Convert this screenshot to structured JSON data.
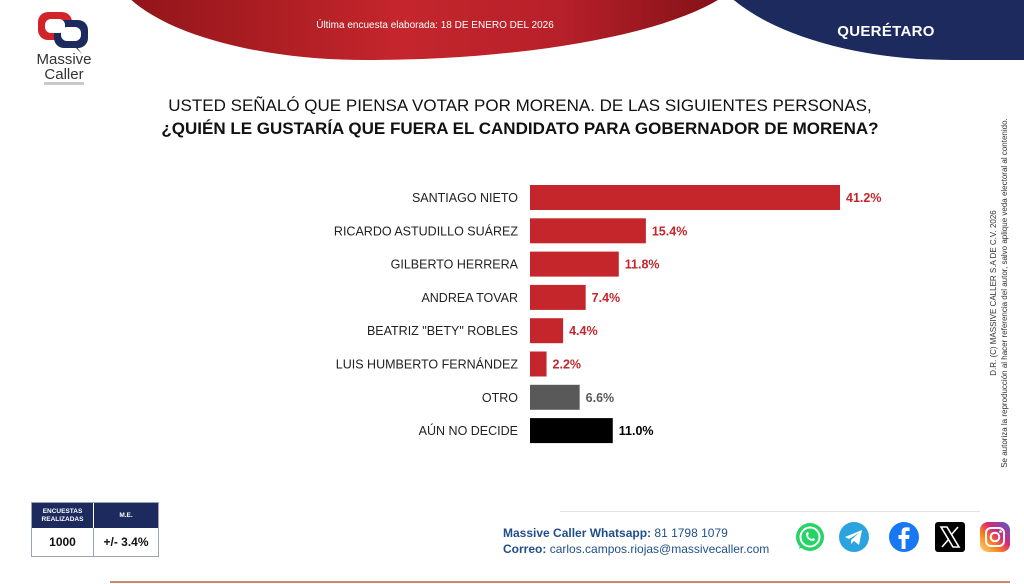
{
  "header": {
    "subtitle": "Última encuesta elaborada: 18 DE ENERO DEL 2026",
    "state": "QUERÉTARO",
    "red_color": "#c4262c",
    "navy_color": "#1c2a5e"
  },
  "logo": {
    "line1": "Massive",
    "line2": "Caller",
    "icon": "speech-bubbles-logo"
  },
  "question": {
    "line1": "USTED SEÑALÓ QUE PIENSA VOTAR POR MORENA. DE LAS SIGUIENTES PERSONAS,",
    "line2": "¿QUIÉN LE GUSTARÍA QUE FUERA EL CANDIDATO PARA GOBERNADOR DE MORENA?"
  },
  "chart_data": {
    "type": "bar",
    "orientation": "horizontal",
    "categories": [
      "SANTIAGO NIETO",
      "RICARDO ASTUDILLO SUÁREZ",
      "GILBERTO HERRERA",
      "ANDREA TOVAR",
      "BEATRIZ \"BETY\" ROBLES",
      "LUIS HUMBERTO FERNÁNDEZ",
      "OTRO",
      "AÚN NO DECIDE"
    ],
    "values": [
      41.2,
      15.4,
      11.8,
      7.4,
      4.4,
      2.2,
      6.6,
      11.0
    ],
    "value_labels": [
      "41.2%",
      "15.4%",
      "11.8%",
      "7.4%",
      "4.4%",
      "2.2%",
      "6.6%",
      "11.0%"
    ],
    "colors": [
      "#c4262c",
      "#c4262c",
      "#c4262c",
      "#c4262c",
      "#c4262c",
      "#c4262c",
      "#595959",
      "#000000"
    ],
    "label_colors": [
      "#c4262c",
      "#c4262c",
      "#c4262c",
      "#c4262c",
      "#c4262c",
      "#c4262c",
      "#595959",
      "#000000"
    ],
    "xlim": [
      0,
      41.2
    ],
    "grid": false,
    "legend": "none"
  },
  "copyright": {
    "line1": "D.R. (C) MASSIVE CALLER S.A DE C.V. 2026",
    "line2": "Se autoriza la reproducción al hacer referencia del autor, salvo aplique veda electoral al contenido."
  },
  "stats": {
    "col1_header": "ENCUESTAS REALIZADAS",
    "col2_header": "M.E.",
    "col1_value": "1000",
    "col2_value": "+/- 3.4%"
  },
  "contact": {
    "whatsapp_label": "Massive Caller Whatsapp:",
    "whatsapp_value": "81 1798 1079",
    "email_label": "Correo:",
    "email_value": "carlos.campos.riojas@massivecaller.com"
  },
  "social": [
    "whatsapp-icon",
    "telegram-icon",
    "facebook-icon",
    "x-icon",
    "instagram-icon"
  ]
}
